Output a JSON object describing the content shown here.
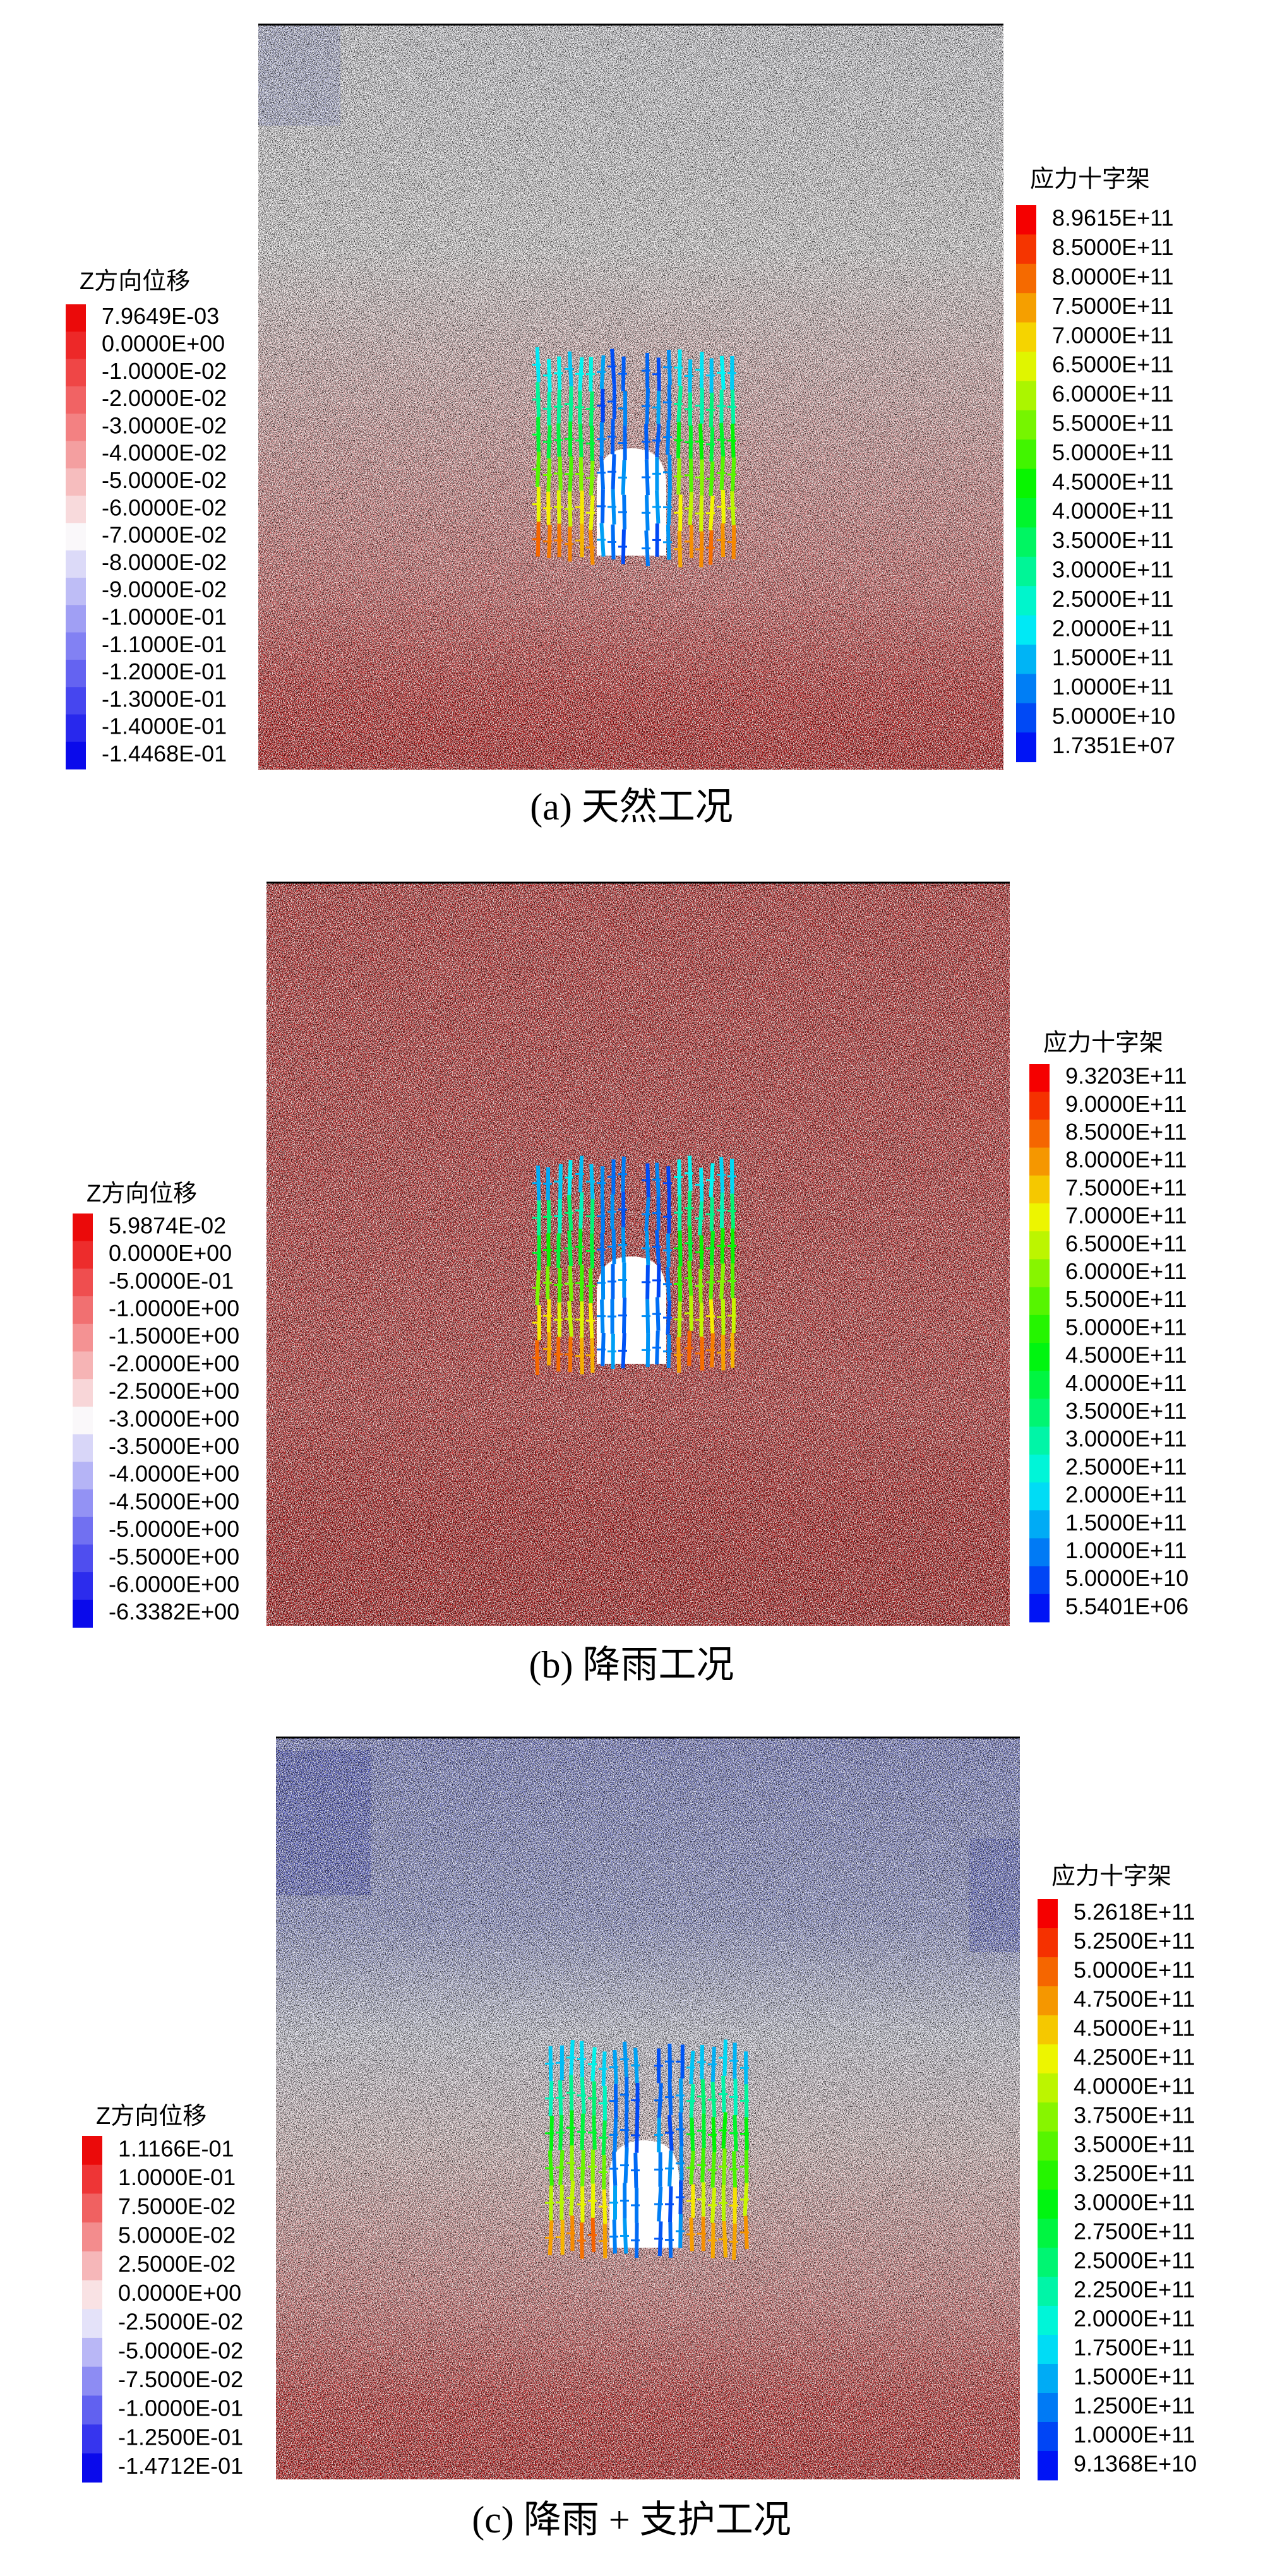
{
  "panels": [
    {
      "caption": "(a) 天然工况",
      "left_legend": {
        "title": "Z方向位移",
        "labels": [
          "7.9649E-03",
          "0.0000E+00",
          "-1.0000E-02",
          "-2.0000E-02",
          "-3.0000E-02",
          "-4.0000E-02",
          "-5.0000E-02",
          "-6.0000E-02",
          "-7.0000E-02",
          "-8.0000E-02",
          "-9.0000E-02",
          "-1.0000E-01",
          "-1.1000E-01",
          "-1.2000E-01",
          "-1.3000E-01",
          "-1.4000E-01",
          "-1.4468E-01"
        ]
      },
      "right_legend": {
        "title": "应力十字架",
        "labels": [
          "8.9615E+11",
          "8.5000E+11",
          "8.0000E+11",
          "7.5000E+11",
          "7.0000E+11",
          "6.5000E+11",
          "6.0000E+11",
          "5.5000E+11",
          "5.0000E+11",
          "4.5000E+11",
          "4.0000E+11",
          "3.5000E+11",
          "3.0000E+11",
          "2.5000E+11",
          "2.0000E+11",
          "1.5000E+11",
          "1.0000E+11",
          "5.0000E+10",
          "1.7351E+07"
        ]
      }
    },
    {
      "caption": "(b) 降雨工况",
      "left_legend": {
        "title": "Z方向位移",
        "labels": [
          "5.9874E-02",
          "0.0000E+00",
          "-5.0000E-01",
          "-1.0000E+00",
          "-1.5000E+00",
          "-2.0000E+00",
          "-2.5000E+00",
          "-3.0000E+00",
          "-3.5000E+00",
          "-4.0000E+00",
          "-4.5000E+00",
          "-5.0000E+00",
          "-5.5000E+00",
          "-6.0000E+00",
          "-6.3382E+00"
        ]
      },
      "right_legend": {
        "title": "应力十字架",
        "labels": [
          "9.3203E+11",
          "9.0000E+11",
          "8.5000E+11",
          "8.0000E+11",
          "7.5000E+11",
          "7.0000E+11",
          "6.5000E+11",
          "6.0000E+11",
          "5.5000E+11",
          "5.0000E+11",
          "4.5000E+11",
          "4.0000E+11",
          "3.5000E+11",
          "3.0000E+11",
          "2.5000E+11",
          "2.0000E+11",
          "1.5000E+11",
          "1.0000E+11",
          "5.0000E+10",
          "5.5401E+06"
        ]
      }
    },
    {
      "caption": "(c) 降雨 + 支护工况",
      "left_legend": {
        "title": "Z方向位移",
        "labels": [
          "1.1166E-01",
          "1.0000E-01",
          "7.5000E-02",
          "5.0000E-02",
          "2.5000E-02",
          "0.0000E+00",
          "-2.5000E-02",
          "-5.0000E-02",
          "-7.5000E-02",
          "-1.0000E-01",
          "-1.2500E-01",
          "-1.4712E-01"
        ]
      },
      "right_legend": {
        "title": "应力十字架",
        "labels": [
          "5.2618E+11",
          "5.2500E+11",
          "5.0000E+11",
          "4.7500E+11",
          "4.5000E+11",
          "4.2500E+11",
          "4.0000E+11",
          "3.7500E+11",
          "3.5000E+11",
          "3.2500E+11",
          "3.0000E+11",
          "2.7500E+11",
          "2.5000E+11",
          "2.2500E+11",
          "2.0000E+11",
          "1.7500E+11",
          "1.5000E+11",
          "1.2500E+11",
          "1.0000E+11",
          "9.1368E+10"
        ]
      }
    }
  ]
}
